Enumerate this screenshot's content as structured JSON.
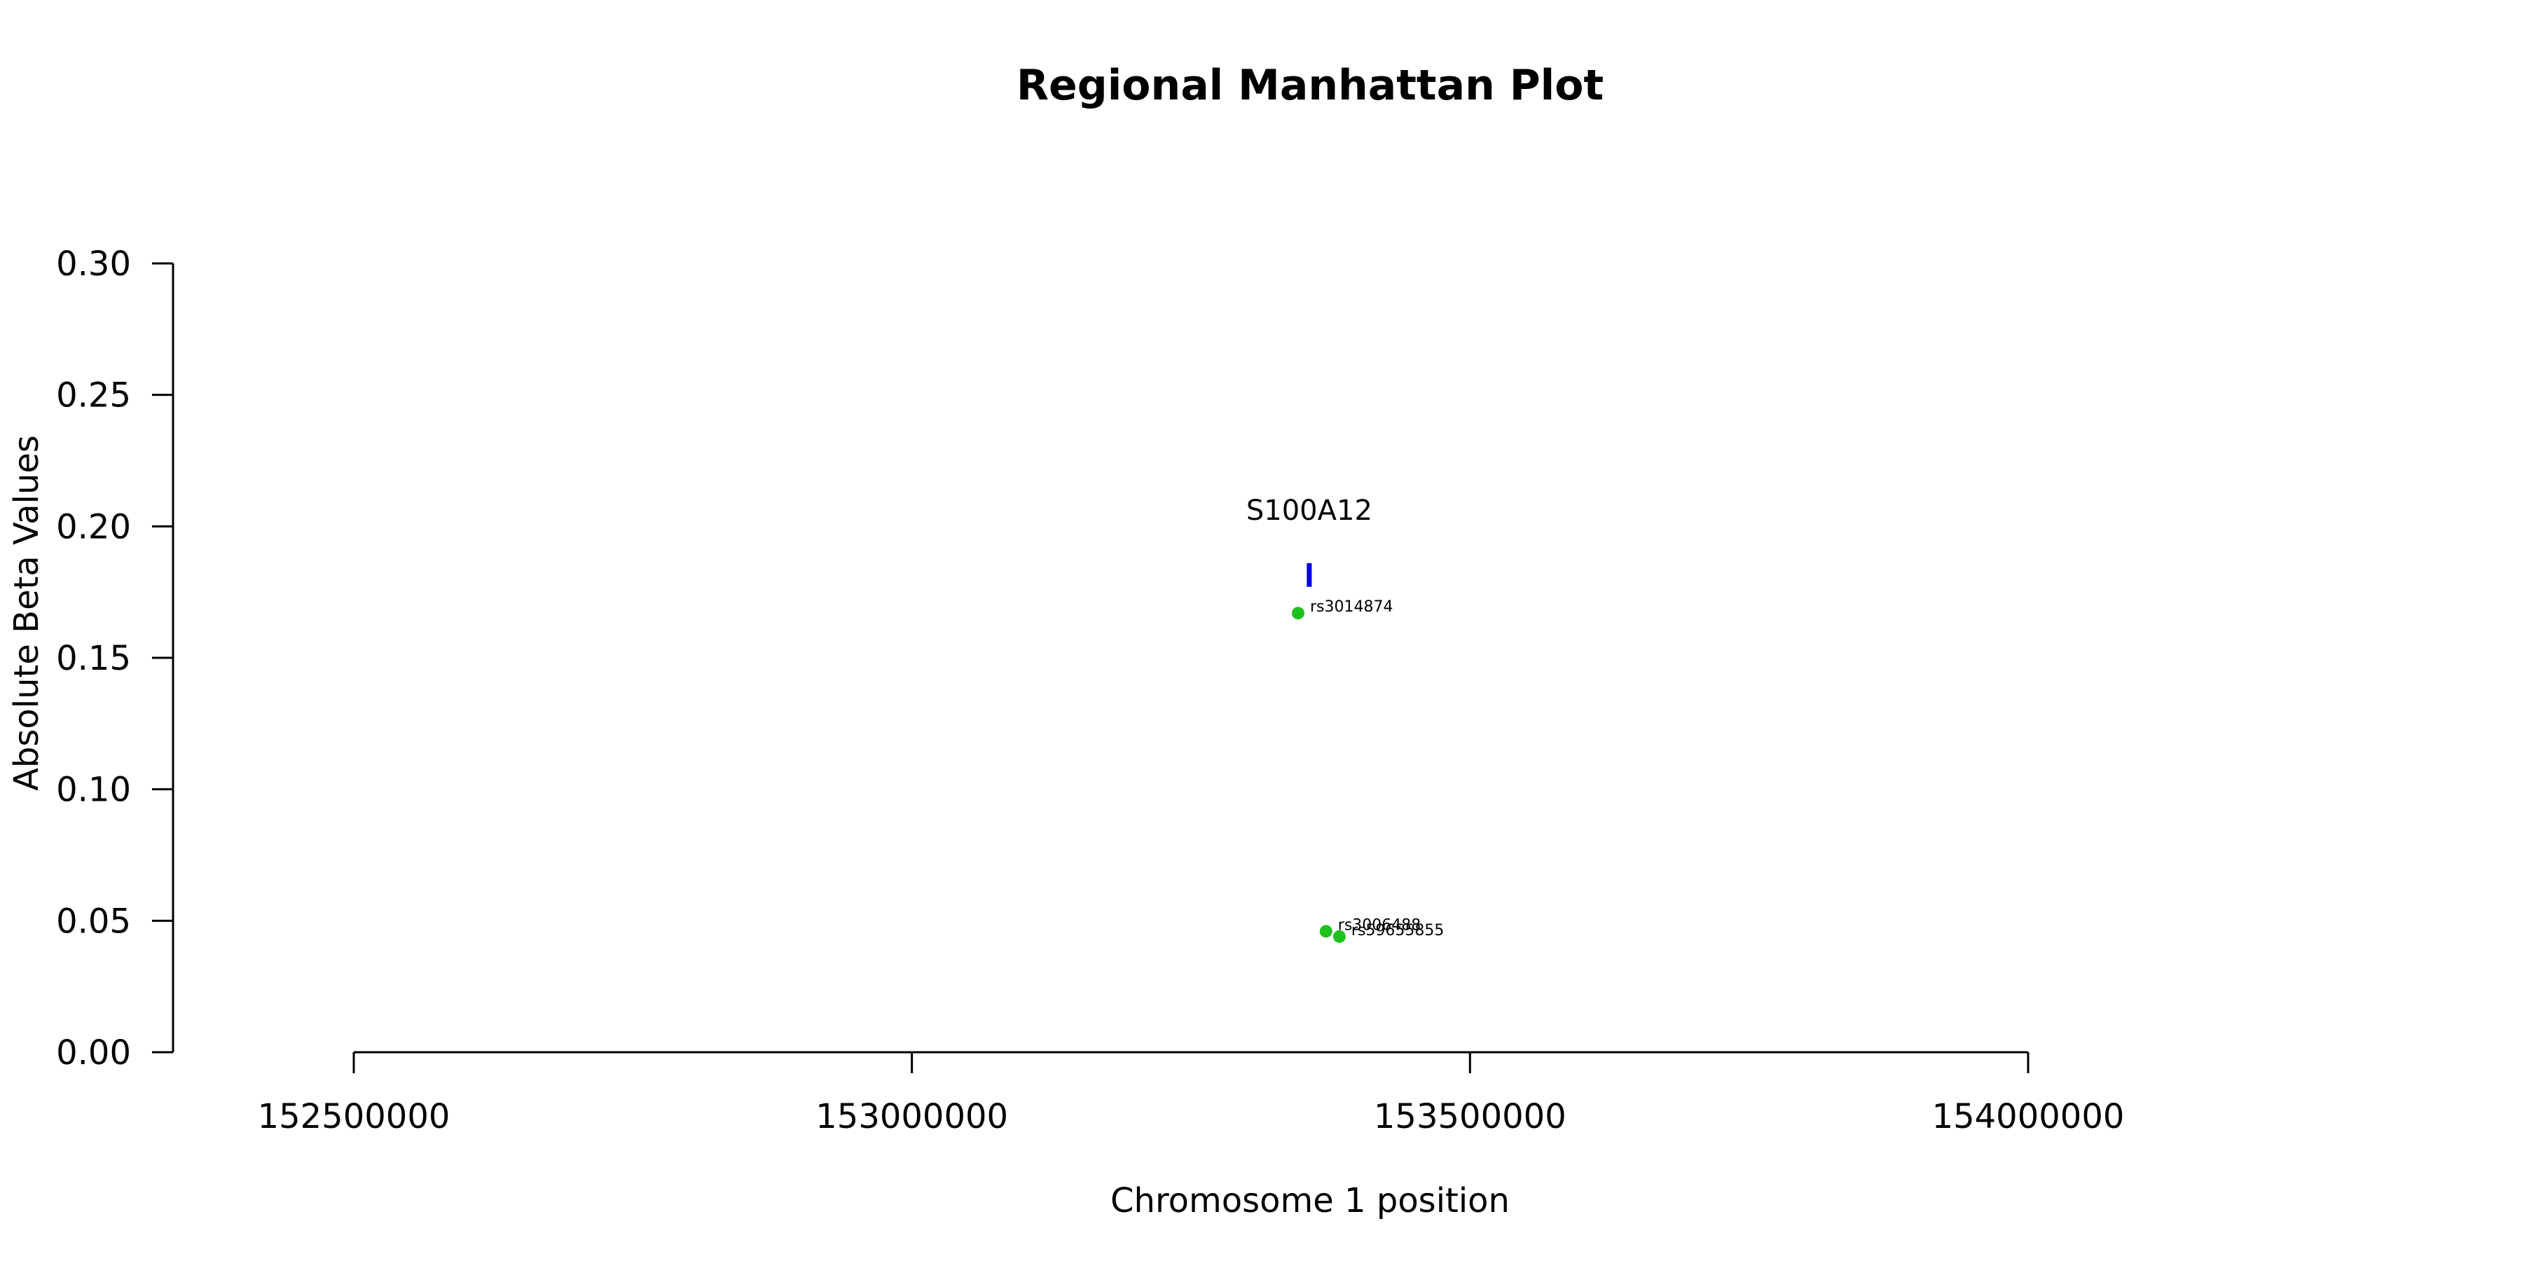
{
  "chart_data": {
    "type": "scatter",
    "title": "Regional Manhattan Plot",
    "xlabel": "Chromosome 1 position",
    "ylabel": "Absolute Beta Values",
    "xlim": [
      152500000,
      154000000
    ],
    "ylim": [
      0,
      0.3
    ],
    "xticks": [
      152500000,
      153000000,
      153500000,
      154000000
    ],
    "yticks": [
      "0.00",
      "0.05",
      "0.10",
      "0.15",
      "0.20",
      "0.25",
      "0.30"
    ],
    "grid": false,
    "points": [
      {
        "label": "rs3014874",
        "x": 153346000,
        "y": 0.167
      },
      {
        "label": "rs3006488",
        "x": 153371000,
        "y": 0.046
      },
      {
        "label": "rs59655855",
        "x": 153383000,
        "y": 0.044
      }
    ],
    "genes": [
      {
        "name": "S100A12",
        "x": 153356000,
        "y_low": 0.177,
        "y_high": 0.186
      }
    ],
    "colors": {
      "point": "#1ec11e",
      "gene": "#0000dd",
      "axis": "#000000"
    }
  }
}
